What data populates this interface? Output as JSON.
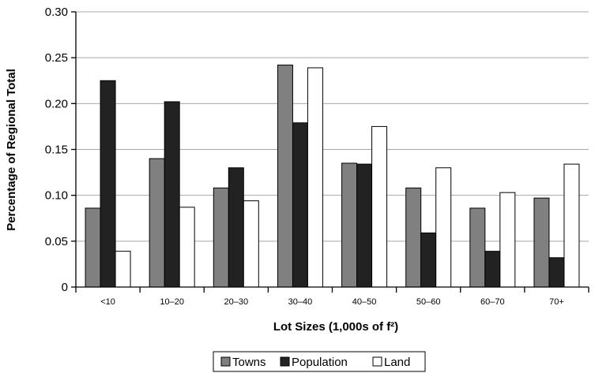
{
  "chart_data": {
    "type": "bar",
    "title": "",
    "xlabel": "Lot Sizes (1,000s of f²)",
    "ylabel": "Percentage of Regional Total",
    "categories": [
      "<10",
      "10–20",
      "20–30",
      "30–40",
      "40–50",
      "50–60",
      "60–70",
      "70+"
    ],
    "series": [
      {
        "name": "Towns",
        "values": [
          0.086,
          0.14,
          0.108,
          0.242,
          0.135,
          0.108,
          0.086,
          0.097
        ]
      },
      {
        "name": "Population",
        "values": [
          0.225,
          0.202,
          0.13,
          0.179,
          0.134,
          0.059,
          0.039,
          0.032
        ]
      },
      {
        "name": "Land",
        "values": [
          0.039,
          0.087,
          0.094,
          0.239,
          0.175,
          0.13,
          0.103,
          0.134
        ]
      }
    ],
    "ylim": [
      0,
      0.3
    ],
    "yticks": [
      "0",
      "0.05",
      "0.10",
      "0.15",
      "0.20",
      "0.25",
      "0.30"
    ],
    "grid": true,
    "legend_position": "bottom-center",
    "colors": {
      "Towns": "#808080",
      "Population": "#222222",
      "Land": "#ffffff"
    }
  }
}
